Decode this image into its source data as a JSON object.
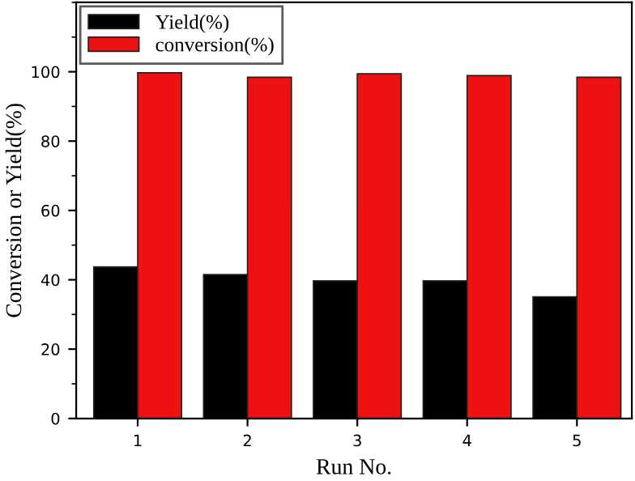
{
  "chart_data": {
    "type": "bar",
    "xlabel": "Run No.",
    "ylabel": "Conversion or Yield(%)",
    "categories": [
      "1",
      "2",
      "3",
      "4",
      "5"
    ],
    "series": [
      {
        "name": "Yield(%)",
        "color": "#000000",
        "values": [
          43.7,
          41.5,
          39.7,
          39.7,
          35.1
        ]
      },
      {
        "name": "conversion(%)",
        "color": "#ee1111",
        "values": [
          99.7,
          98.4,
          99.4,
          98.9,
          98.4
        ]
      }
    ],
    "ylim": [
      0,
      120
    ],
    "yticks": [
      0,
      20,
      40,
      60,
      80,
      100
    ],
    "grid": false,
    "legend": "top left"
  }
}
